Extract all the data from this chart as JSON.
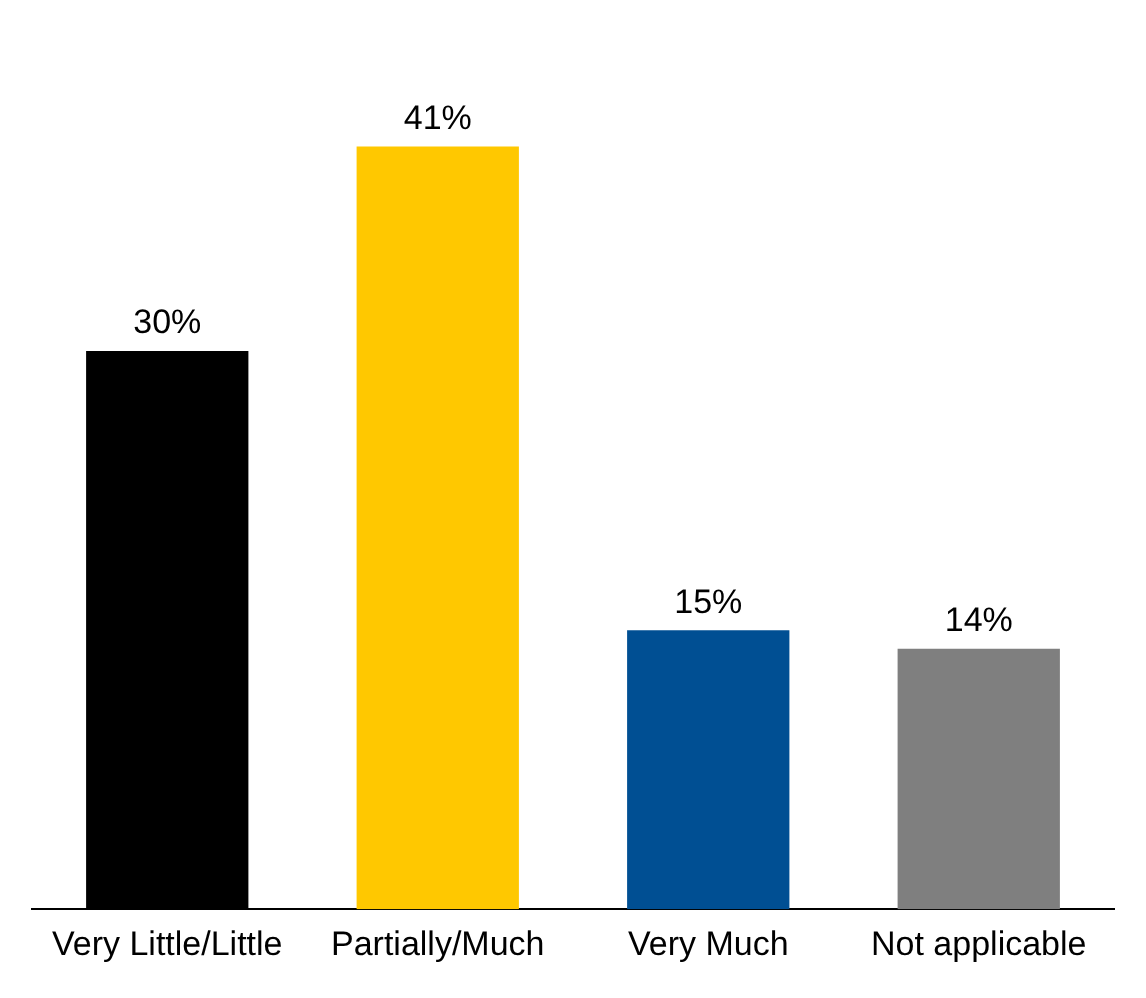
{
  "chart_data": {
    "type": "bar",
    "categories": [
      "Very Little/Little",
      "Partially/Much",
      "Very Much",
      "Not applicable"
    ],
    "values": [
      30,
      41,
      15,
      14
    ],
    "colors": [
      "#000000",
      "#ffc800",
      "#004f93",
      "#7f7f7f"
    ],
    "value_labels": [
      "30%",
      "41%",
      "15%",
      "14%"
    ],
    "legend": false,
    "grid": false
  }
}
